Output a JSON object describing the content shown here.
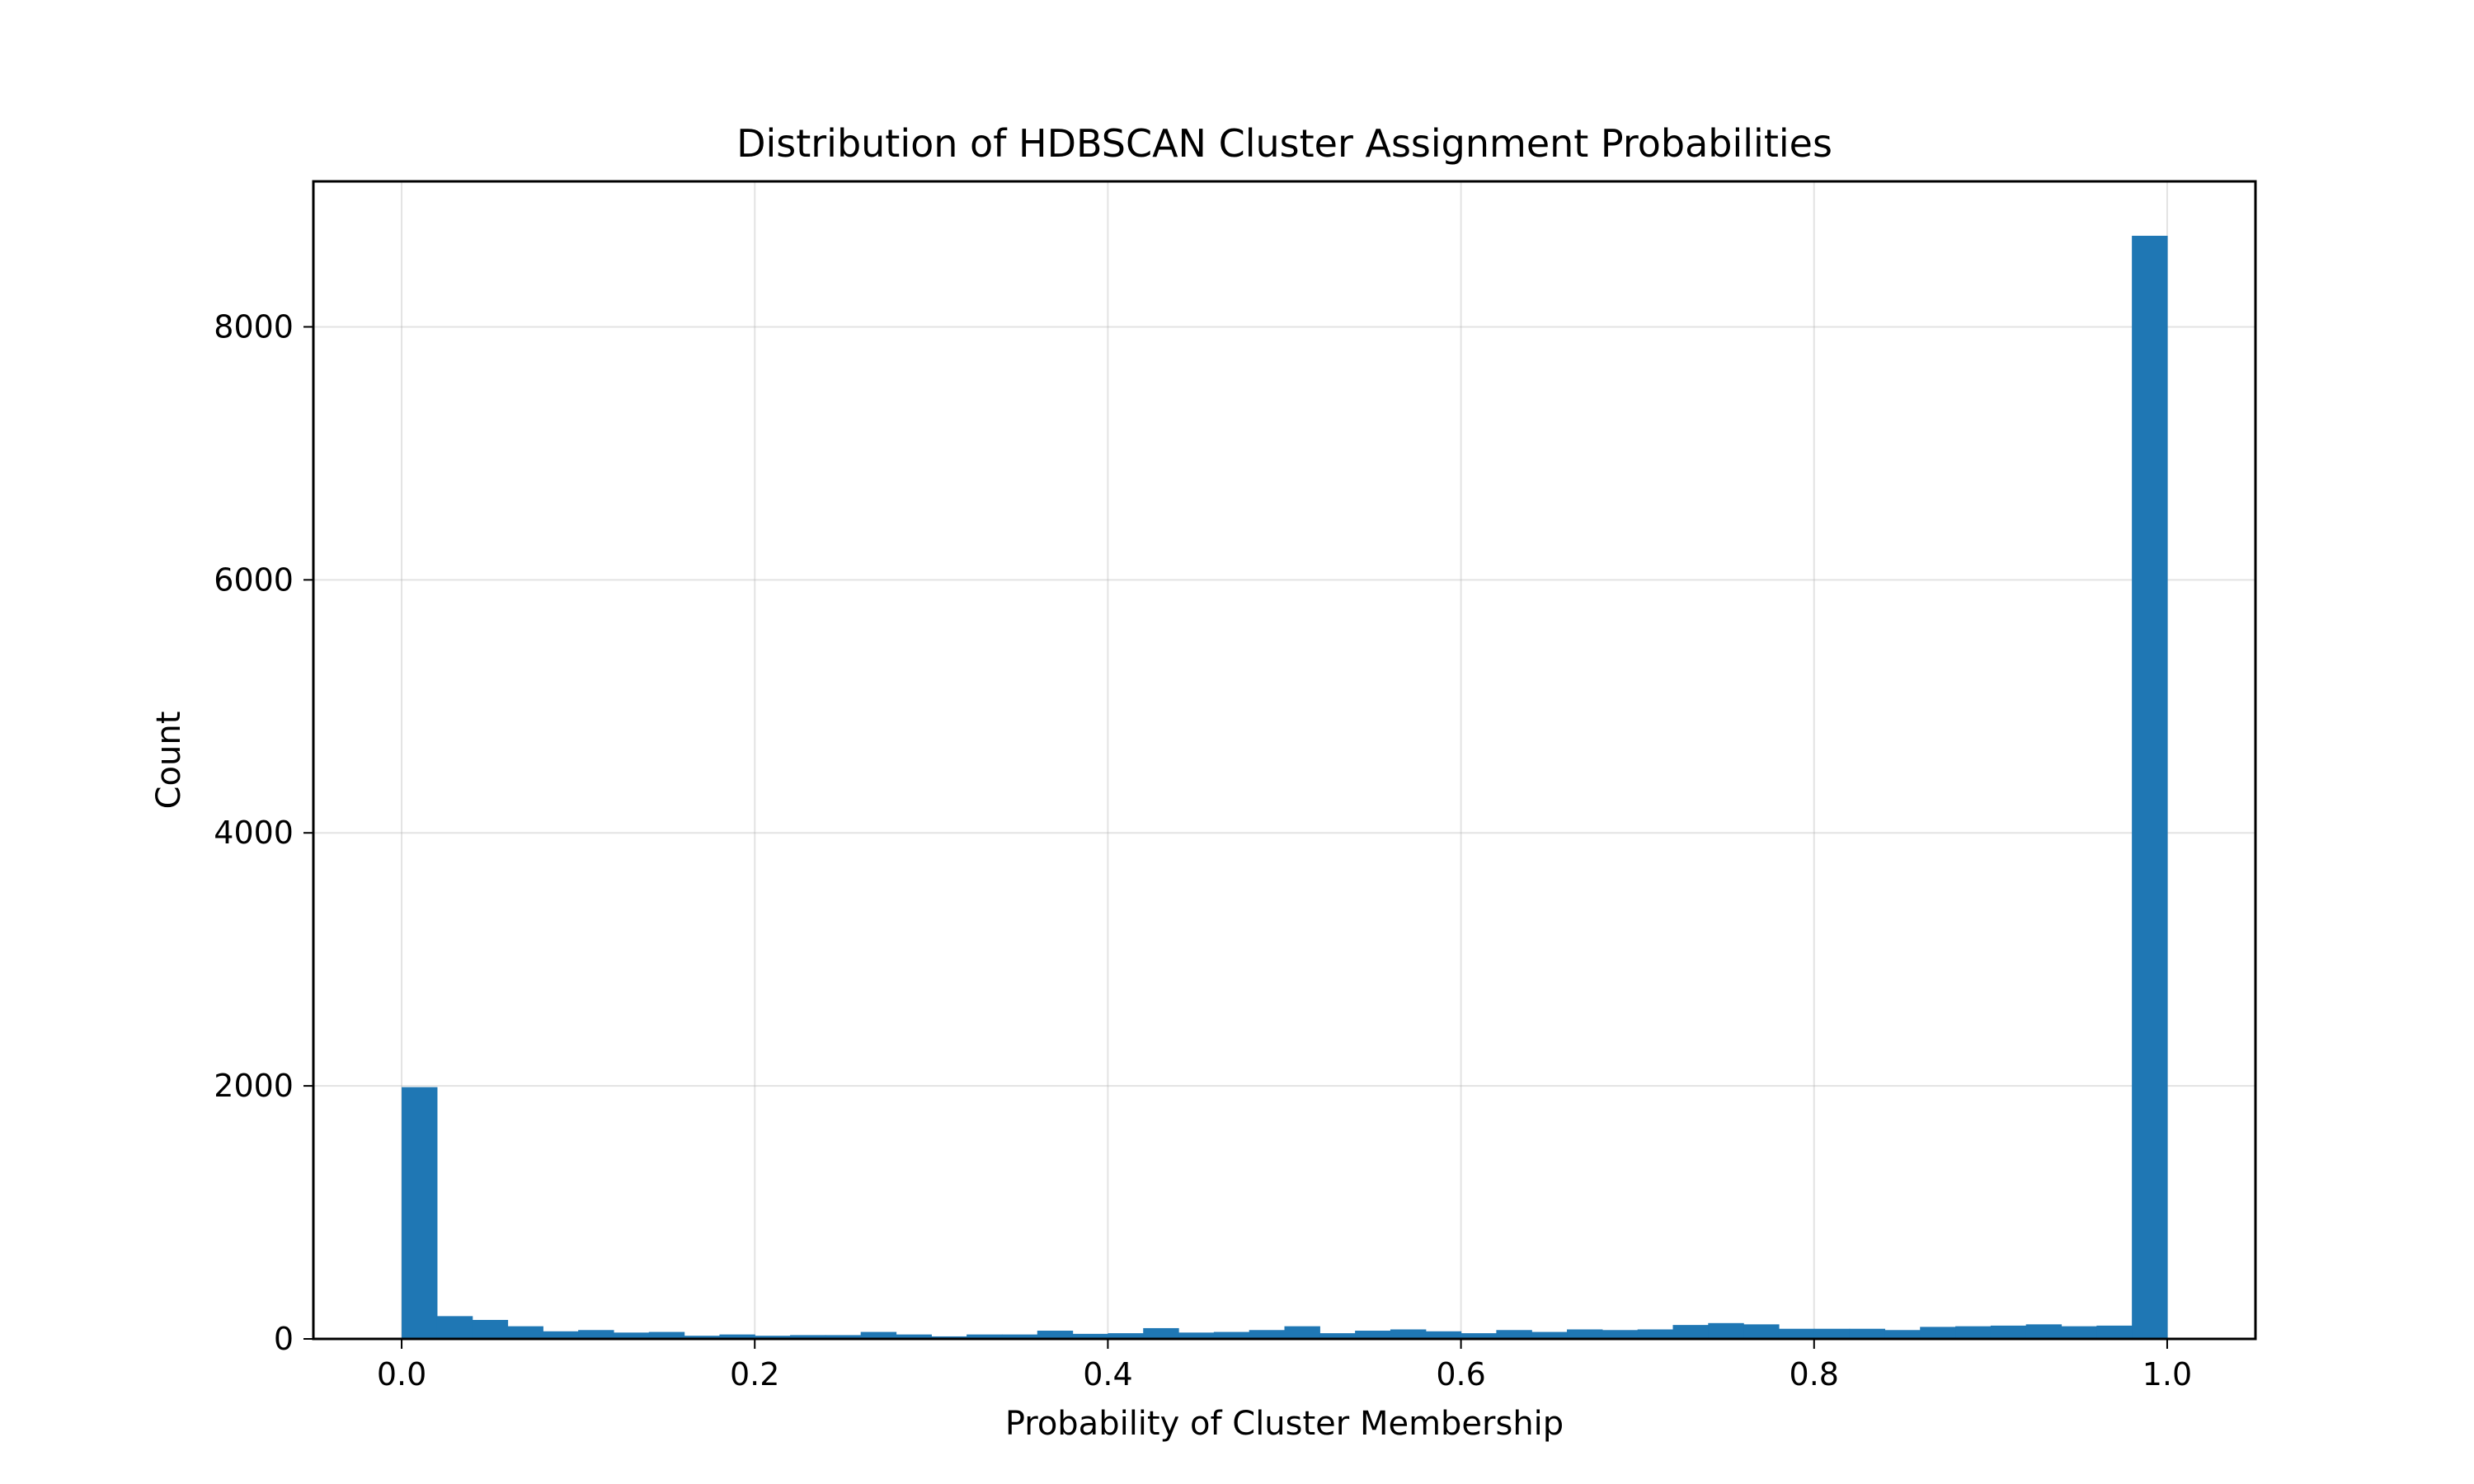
{
  "chart_data": {
    "type": "bar",
    "title": "Distribution of HDBSCAN Cluster Assignment Probabilities",
    "xlabel": "Probability of Cluster Membership",
    "ylabel": "Count",
    "xlim": [
      -0.05,
      1.05
    ],
    "ylim": [
      0,
      9150
    ],
    "x_ticks": [
      0.0,
      0.2,
      0.4,
      0.6,
      0.8,
      1.0
    ],
    "x_tick_labels": [
      "0.0",
      "0.2",
      "0.4",
      "0.6",
      "0.8",
      "1.0"
    ],
    "y_ticks": [
      0,
      2000,
      4000,
      6000,
      8000
    ],
    "y_tick_labels": [
      "0",
      "2000",
      "4000",
      "6000",
      "8000"
    ],
    "grid": true,
    "bin_width": 0.02,
    "bin_starts": [
      0.0,
      0.02,
      0.04,
      0.06,
      0.08,
      0.1,
      0.12,
      0.14,
      0.16,
      0.18,
      0.2,
      0.22,
      0.24,
      0.26,
      0.28,
      0.3,
      0.32,
      0.34,
      0.36,
      0.38,
      0.4,
      0.42,
      0.44,
      0.46,
      0.48,
      0.5,
      0.52,
      0.54,
      0.56,
      0.58,
      0.6,
      0.62,
      0.64,
      0.66,
      0.68,
      0.7,
      0.72,
      0.74,
      0.76,
      0.78,
      0.8,
      0.82,
      0.84,
      0.86,
      0.88,
      0.9,
      0.92,
      0.94,
      0.96,
      0.98
    ],
    "values": [
      1990,
      180,
      150,
      100,
      60,
      70,
      50,
      55,
      25,
      35,
      25,
      30,
      30,
      55,
      35,
      20,
      35,
      35,
      65,
      40,
      45,
      85,
      50,
      55,
      70,
      100,
      45,
      65,
      75,
      60,
      45,
      70,
      55,
      75,
      70,
      75,
      110,
      125,
      115,
      80,
      80,
      80,
      70,
      95,
      100,
      105,
      115,
      100,
      105,
      8720
    ],
    "color": "#1f77b4"
  }
}
